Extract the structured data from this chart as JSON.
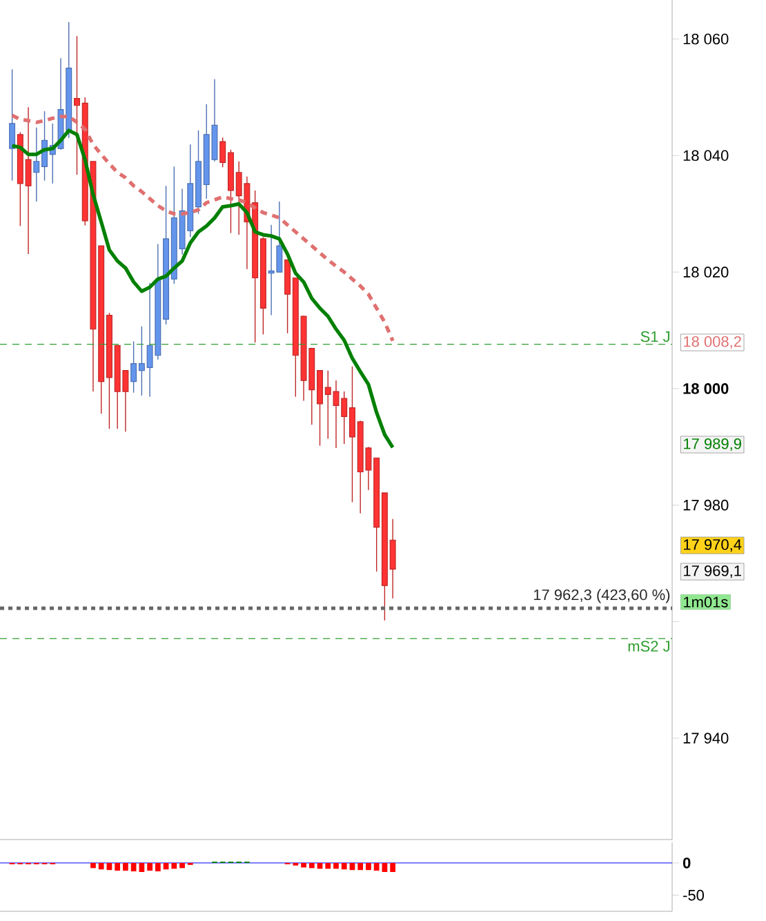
{
  "chart_data": [
    {
      "type": "candlestick",
      "categories": [
        null,
        null,
        null,
        null,
        null,
        null,
        null,
        null,
        null,
        null,
        null,
        null,
        null,
        null,
        null,
        null,
        null,
        null,
        null,
        null,
        null,
        null,
        null,
        null,
        null,
        null,
        null,
        null,
        null,
        null,
        null,
        null,
        null,
        null,
        null,
        null,
        null,
        null,
        null,
        null,
        null,
        null,
        null,
        null,
        null,
        null,
        null,
        null,
        null,
        null,
        null,
        null,
        null,
        null,
        null,
        null,
        null,
        null,
        null,
        null,
        null,
        null,
        null,
        null,
        null,
        null,
        null,
        null,
        null,
        null,
        null,
        null,
        null,
        null,
        null,
        null,
        null,
        null,
        null,
        null,
        null,
        null,
        null
      ],
      "ohlc": [
        null,
        [
          18041.2,
          18054.8,
          18035.7,
          18045.5
        ],
        [
          18043.6,
          18044.0,
          18027.9,
          18035.2
        ],
        [
          18039.3,
          18048.3,
          18023.1,
          18034.8
        ],
        [
          18037.1,
          18044.8,
          18032.1,
          18039.0
        ],
        [
          18038.1,
          18047.6,
          18035.7,
          18042.6
        ],
        [
          18040.2,
          18045.5,
          18035.2,
          18041.7
        ],
        [
          18041.2,
          18056.7,
          18041.0,
          18047.9
        ],
        [
          18044.3,
          18062.9,
          18043.0,
          18055.0
        ],
        [
          18049.8,
          18060.5,
          18036.7,
          18048.6
        ],
        [
          18049.0,
          18050.0,
          18028.0,
          18028.8
        ],
        [
          18039.0,
          18039.0,
          17999.5,
          18010.2
        ],
        [
          18024.5,
          18024.5,
          17995.7,
          18001.2
        ],
        [
          18012.6,
          18013.0,
          17993.1,
          18001.9
        ],
        [
          18007.4,
          18007.4,
          17993.1,
          17999.5
        ],
        [
          18003.1,
          18003.1,
          17992.6,
          17999.5
        ],
        [
          18001.2,
          18008.1,
          17999.3,
          18004.3
        ],
        [
          18003.1,
          18010.7,
          17998.8,
          18004.3
        ],
        [
          18003.6,
          18018.1,
          17998.6,
          18007.4
        ],
        [
          18005.7,
          18024.8,
          18005.0,
          18018.6
        ],
        [
          18011.9,
          18034.8,
          18011.0,
          18025.7
        ],
        [
          18018.8,
          18038.1,
          18018.0,
          18029.3
        ],
        [
          18024.0,
          18034.3,
          18023.0,
          18030.5
        ],
        [
          18027.1,
          18041.9,
          18026.0,
          18035.2
        ],
        [
          18031.2,
          18044.3,
          18030.0,
          18039.0
        ],
        [
          18035.0,
          18048.8,
          18032.6,
          18043.6
        ],
        [
          18039.3,
          18053.1,
          18039.0,
          18045.2
        ],
        [
          18042.4,
          18043.1,
          18038.0,
          18038.8
        ],
        [
          18040.5,
          18041.0,
          18026.7,
          18034.0
        ],
        [
          18037.1,
          18039.0,
          18026.4,
          18033.1
        ],
        [
          18035.2,
          18036.4,
          18020.5,
          18028.6
        ],
        [
          18031.9,
          18034.0,
          18007.9,
          18019.0
        ],
        [
          18025.7,
          18026.0,
          18009.3,
          18013.8
        ],
        [
          18019.8,
          18028.1,
          18012.6,
          18020.2
        ],
        [
          18020.0,
          18032.1,
          18020.0,
          18024.5
        ],
        [
          18022.1,
          18022.1,
          18009.5,
          18016.2
        ],
        [
          18019.0,
          18019.0,
          17998.6,
          18005.7
        ],
        [
          18012.4,
          18012.5,
          17997.9,
          18001.4
        ],
        [
          18006.9,
          18007.0,
          17993.8,
          17999.8
        ],
        [
          18003.1,
          18003.1,
          17990.2,
          17997.4
        ],
        [
          18000.2,
          18003.1,
          17991.4,
          17999.0
        ],
        [
          17999.5,
          18001.4,
          17989.8,
          17997.1
        ],
        [
          17998.3,
          17999.5,
          17990.5,
          17995.2
        ],
        [
          17996.7,
          18003.8,
          17980.5,
          17991.7
        ],
        [
          17994.3,
          17994.5,
          17978.6,
          17985.7
        ],
        [
          17989.8,
          17990.0,
          17982.6,
          17986.0
        ],
        [
          17988.1,
          17988.1,
          17968.6,
          17976.2
        ],
        [
          17982.1,
          17982.1,
          17960.2,
          17966.2
        ],
        [
          17974.0,
          17977.6,
          17964.0,
          17969.0
        ],
        null,
        null,
        null,
        null,
        null,
        null,
        null,
        null,
        null,
        null,
        null,
        null,
        null,
        null,
        null,
        null,
        null,
        null,
        null,
        null,
        null,
        null,
        null,
        null,
        null,
        null,
        null,
        null,
        null,
        null,
        null,
        null,
        null,
        null
      ],
      "colors": [
        null,
        "#6495ed",
        "#ff3333",
        "#ff3333",
        "#6495ed",
        "#6495ed",
        "#6495ed",
        "#6495ed",
        "#6495ed",
        "#ff3333",
        "#ff3333",
        "#ff3333",
        "#ff3333",
        "#ff3333",
        "#ff3333",
        "#ff3333",
        "#6495ed",
        "#6495ed",
        "#6495ed",
        "#6495ed",
        "#6495ed",
        "#6495ed",
        "#6495ed",
        "#6495ed",
        "#6495ed",
        "#6495ed",
        "#6495ed",
        "#ff3333",
        "#ff3333",
        "#ff3333",
        "#ff3333",
        "#ff3333",
        "#ff3333",
        "#6495ed",
        "#6495ed",
        "#ff3333",
        "#ff3333",
        "#ff3333",
        "#ff3333",
        "#ff3333",
        "#ff3333",
        "#ff3333",
        "#ff3333",
        "#ff3333",
        "#ff3333",
        "#ff3333",
        "#ff3333",
        "#ff3333",
        "#ff3333",
        null,
        null,
        null,
        null,
        null,
        null,
        null,
        null,
        null,
        null,
        null,
        null,
        null,
        null,
        null,
        null,
        null,
        null,
        null,
        null,
        null,
        null,
        null,
        null,
        null,
        null,
        null,
        null,
        null,
        null,
        null,
        null,
        null,
        null
      ],
      "series": [
        {
          "type": "line",
          "color": "#008000",
          "line_style": "solid",
          "values": [
            null,
            18041.7,
            18041.4,
            18040.2,
            18040.2,
            18041.0,
            18041.2,
            18042.6,
            18044.3,
            18043.6,
            18039.3,
            18033.3,
            18028.6,
            18023.8,
            18021.9,
            18020.7,
            18018.3,
            18016.7,
            18017.4,
            18018.8,
            18019.3,
            18020.7,
            18021.9,
            18025.0,
            18026.9,
            18027.9,
            18029.3,
            18031.2,
            18031.4,
            18031.7,
            18030.2,
            18026.9,
            18026.4,
            18026.2,
            18025.7,
            18023.1,
            18019.8,
            18018.3,
            18015.5,
            18013.8,
            18012.4,
            18010.2,
            18008.3,
            18005.2,
            18002.9,
            18000.7,
            17995.9,
            17992.1,
            17989.9,
            null,
            null,
            null,
            null,
            null,
            null,
            null,
            null,
            null,
            null,
            null,
            null,
            null,
            null,
            null,
            null,
            null,
            null,
            null,
            null,
            null,
            null,
            null,
            null,
            null,
            null,
            null,
            null,
            null,
            null,
            null,
            null,
            null,
            null
          ]
        },
        {
          "type": "line",
          "color": "#e07070",
          "line_style": "dashed",
          "values": [
            null,
            18046.9,
            18046.2,
            18046.0,
            18045.7,
            18046.0,
            18046.4,
            18046.7,
            18046.7,
            18045.7,
            18044.5,
            18041.9,
            18040.2,
            18038.6,
            18037.1,
            18036.2,
            18034.8,
            18033.8,
            18032.6,
            18031.4,
            18030.5,
            18030.0,
            18030.0,
            18030.2,
            18030.7,
            18031.9,
            18032.4,
            18032.9,
            18032.6,
            18032.4,
            18031.9,
            18031.0,
            18030.2,
            18029.8,
            18029.3,
            18028.1,
            18026.9,
            18025.7,
            18024.5,
            18023.3,
            18022.1,
            18021.0,
            18020.0,
            18018.8,
            18017.6,
            18016.2,
            18013.8,
            18011.4,
            18008.2,
            null,
            null,
            null,
            null,
            null,
            null,
            null,
            null,
            null,
            null,
            null,
            null,
            null,
            null,
            null,
            null,
            null,
            null,
            null,
            null,
            null,
            null,
            null,
            null,
            null,
            null,
            null,
            null,
            null,
            null,
            null,
            null,
            null,
            null
          ]
        }
      ],
      "ylim": [
        17922.6,
        18066.7
      ],
      "yticks": [
        {
          "value": 17940,
          "label": "17 940"
        },
        {
          "value": 17960,
          "label": null
        },
        {
          "value": 17980,
          "label": "17 980"
        },
        {
          "value": 18000,
          "label": "**18 000**"
        },
        {
          "value": 18020,
          "label": "18 020"
        },
        {
          "value": 18040,
          "label": "18 040"
        },
        {
          "value": 18060,
          "label": "18 060"
        }
      ],
      "ref_lines": [
        {
          "axis": "y",
          "value": 18007.6,
          "label": "S1 J",
          "color": "#2e9e2e",
          "line_style": "dashed"
        },
        {
          "axis": "y",
          "value": 17962.3,
          "label": "17 962,3 (423,60 %)",
          "color": "#666666",
          "line_style": "dotted"
        },
        {
          "axis": "y",
          "value": 17957.1,
          "label": "mS2 J",
          "color": "#2e9e2e",
          "line_style": "dashed"
        }
      ],
      "annotations": [
        "18 008,2",
        "17 989,9",
        "17 970,4",
        "17 969,1",
        "1m01s"
      ],
      "tick_labels": "y"
    },
    {
      "type": "bar",
      "categories": [
        null,
        null,
        null,
        null,
        null,
        null,
        null,
        null,
        null,
        null,
        null,
        null,
        null,
        null,
        null,
        null,
        null,
        null,
        null,
        null,
        null,
        null,
        null,
        null,
        null,
        null,
        null,
        null,
        null,
        null,
        null,
        null,
        null,
        null,
        null,
        null,
        null,
        null,
        null,
        null,
        null,
        null,
        null,
        null,
        null,
        null,
        null,
        null,
        null,
        null,
        null,
        null,
        null,
        null,
        null,
        null,
        null,
        null,
        null,
        null,
        null,
        null,
        null,
        null,
        null,
        null,
        null,
        null,
        null,
        null,
        null,
        null,
        null,
        null,
        null,
        null,
        null,
        null,
        null,
        null,
        null,
        null,
        null
      ],
      "values": [
        null,
        -2,
        -2,
        -2,
        -2,
        -2,
        -2,
        null,
        null,
        null,
        null,
        -8,
        -10,
        -11,
        -12,
        -12,
        -13,
        -14,
        -12,
        -13,
        -10,
        -9,
        -8,
        -3,
        null,
        null,
        2,
        2,
        2,
        2,
        2,
        null,
        null,
        null,
        null,
        -2,
        -4,
        -7,
        -8,
        -9,
        -9,
        -9,
        -10,
        -11,
        -11,
        -11,
        -12,
        -14,
        -14,
        null,
        null,
        null,
        null,
        null,
        null,
        null,
        null,
        null,
        null,
        null,
        null,
        null,
        null,
        null,
        null,
        null,
        null,
        null,
        null,
        null,
        null,
        null,
        null,
        null,
        null,
        null,
        null,
        null,
        null,
        null,
        null,
        null,
        null
      ],
      "colors": [
        null,
        "#ff0000",
        "#ff0000",
        "#ff0000",
        "#ff0000",
        "#ff0000",
        "#ff0000",
        null,
        null,
        null,
        null,
        "#ff0000",
        "#ff0000",
        "#ff0000",
        "#ff0000",
        "#ff0000",
        "#ff0000",
        "#ff0000",
        "#ff0000",
        "#ff0000",
        "#ff0000",
        "#ff0000",
        "#ff0000",
        "#ff0000",
        null,
        null,
        "#008000",
        "#008000",
        "#008000",
        "#008000",
        "#008000",
        null,
        null,
        null,
        null,
        "#ff0000",
        "#ff0000",
        "#ff0000",
        "#ff0000",
        "#ff0000",
        "#ff0000",
        "#ff0000",
        "#ff0000",
        "#ff0000",
        "#ff0000",
        "#ff0000",
        "#ff0000",
        "#ff0000",
        "#ff0000",
        null,
        null,
        null,
        null,
        null,
        null,
        null,
        null,
        null,
        null,
        null,
        null,
        null,
        null,
        null,
        null,
        null,
        null,
        null,
        null,
        null,
        null,
        null,
        null,
        null,
        null,
        null,
        null,
        null,
        null,
        null,
        null,
        null,
        null
      ],
      "ylim": [
        -75,
        32
      ],
      "yticks": [
        -50,
        {
          "value": 0,
          "label": "**0**"
        }
      ],
      "ref_lines": [
        {
          "axis": "y",
          "value": 0,
          "color": "#3333ff",
          "line_style": "solid"
        }
      ],
      "tick_labels": "y"
    }
  ]
}
